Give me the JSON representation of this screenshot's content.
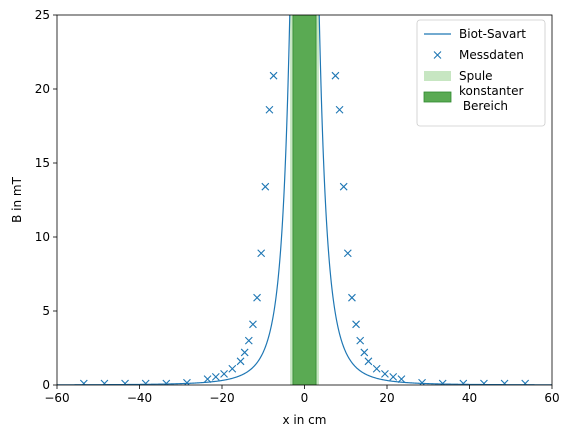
{
  "chart_data": {
    "type": "line",
    "xlabel": "x in cm",
    "ylabel": "B in mT",
    "xlim": [
      -60,
      60
    ],
    "ylim": [
      0,
      25
    ],
    "xticks": [
      -60,
      -40,
      -20,
      0,
      20,
      40,
      60
    ],
    "yticks": [
      0,
      5,
      10,
      15,
      20,
      25
    ],
    "grid": false,
    "legend_position": "top-right",
    "legend": [
      {
        "label": "Biot-Savart",
        "kind": "line"
      },
      {
        "label": "Messdaten",
        "kind": "marker"
      },
      {
        "label": "Spule",
        "kind": "patch-light"
      },
      {
        "label": "konstanter\n Bereich",
        "kind": "patch-dark"
      }
    ],
    "colors": {
      "line": "#1f77b4",
      "marker": "#1f77b4",
      "coil": "#c7e6c2",
      "constant_region": "#5aaa53",
      "constant_region_edge": "#2f8a2f"
    },
    "regions": {
      "spule": {
        "x_from": -3.5,
        "x_to": 3.5
      },
      "konstanter_bereich": {
        "x_from": -2.8,
        "x_to": 2.8
      }
    },
    "series": [
      {
        "name": "Biot-Savart",
        "kind": "line",
        "model": {
          "peak_mT": 93.75,
          "a_cm": 3.0
        }
      },
      {
        "name": "Messdaten",
        "kind": "scatter",
        "x": [
          -53.5,
          -48.5,
          -43.5,
          -38.5,
          -33.5,
          -28.5,
          -23.5,
          -21.5,
          -19.5,
          -17.5,
          -15.5,
          -14.5,
          -13.5,
          -12.5,
          -11.5,
          -10.5,
          -9.5,
          -8.5,
          -7.5,
          7.5,
          8.5,
          9.5,
          10.5,
          11.5,
          12.5,
          13.5,
          14.5,
          15.5,
          17.5,
          19.5,
          21.5,
          23.5,
          28.5,
          33.5,
          38.5,
          43.5,
          48.5,
          53.5
        ],
        "y": [
          0.1,
          0.1,
          0.1,
          0.1,
          0.1,
          0.15,
          0.4,
          0.55,
          0.75,
          1.1,
          1.6,
          2.2,
          3.0,
          4.1,
          5.9,
          8.9,
          13.4,
          18.6,
          20.9,
          20.9,
          18.6,
          13.4,
          8.9,
          5.9,
          4.1,
          3.0,
          2.2,
          1.6,
          1.1,
          0.75,
          0.55,
          0.4,
          0.15,
          0.1,
          0.1,
          0.1,
          0.1,
          0.1
        ]
      }
    ]
  }
}
